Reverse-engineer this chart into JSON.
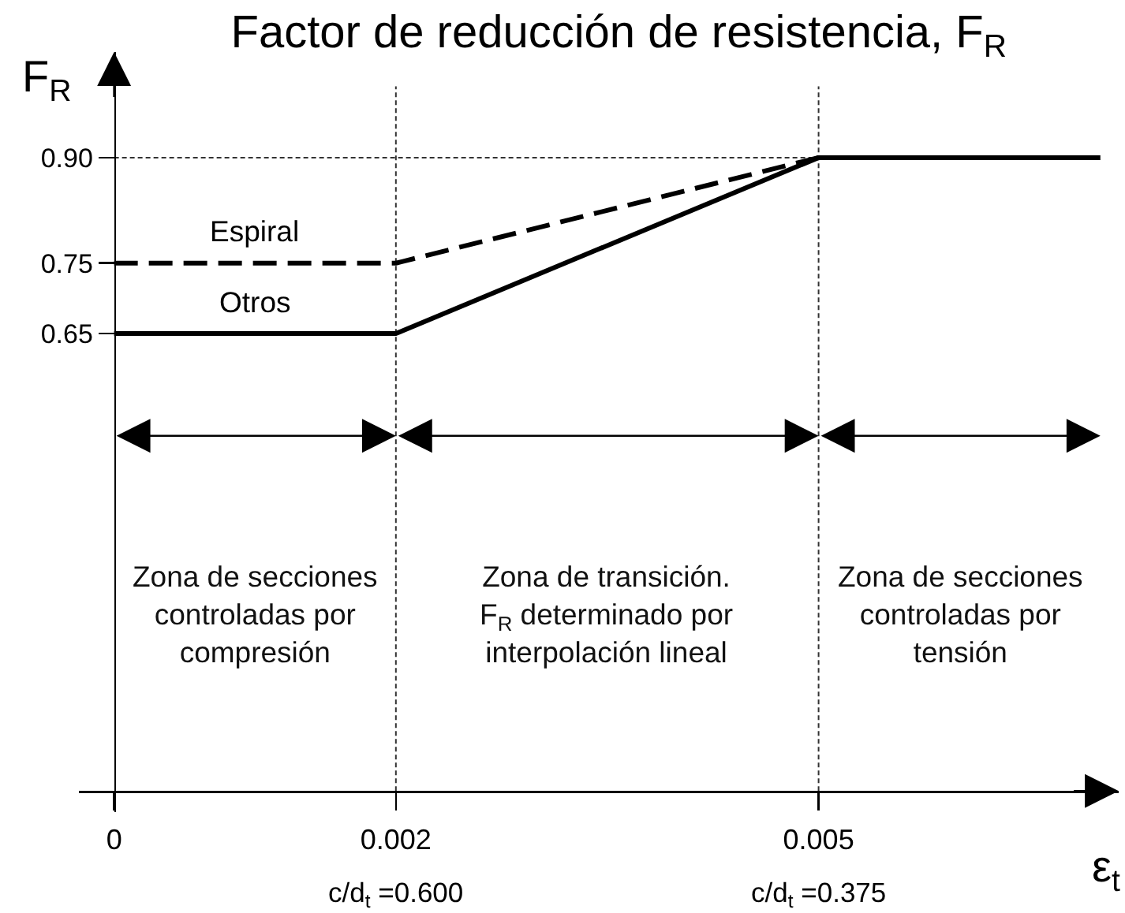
{
  "chart_data": {
    "type": "line",
    "title": "Factor de reducción de resistencia, F$_{R}$",
    "xlabel": "ε$_{t}$",
    "ylabel": "F$_{R}$",
    "series": [
      {
        "name": "Espiral",
        "color": "#000000",
        "line_style": "dashed",
        "x": [
          0,
          0.002,
          0.005
        ],
        "values": [
          0.75,
          0.75,
          0.9
        ]
      },
      {
        "name": "Otros",
        "color": "#000000",
        "line_style": "solid",
        "x": [
          0,
          0.002,
          0.005,
          0.007
        ],
        "values": [
          0.65,
          0.65,
          0.9,
          0.9
        ]
      }
    ],
    "xlim": [
      -0.00025,
      0.00713
    ],
    "ylim": [
      -0.03,
      1.05
    ],
    "xticks": [
      0,
      0.002,
      0.005
    ],
    "yticks": [
      0.65,
      0.75,
      {
        "value": 0.9,
        "label": "0.90"
      }
    ],
    "ref_lines": [
      {
        "axis": "x",
        "value": 0.002,
        "color": "#333333",
        "line_style": "dotted"
      },
      {
        "axis": "x",
        "value": 0.005,
        "color": "#333333",
        "line_style": "dotted"
      },
      {
        "axis": "y",
        "value": 0.9,
        "color": "#333333",
        "line_style": "dotted"
      }
    ],
    "annotations": [
      "Zona de secciones\ncontroladas por\ncompresión",
      "Zona de transición.\nF$_{R}$ determinado por\ninterpolación lineal",
      "Zona de secciones\ncontroladas por\ntensión",
      "c/d$_{t}$ =0.600",
      "c/d$_{t}$ =0.375"
    ]
  }
}
